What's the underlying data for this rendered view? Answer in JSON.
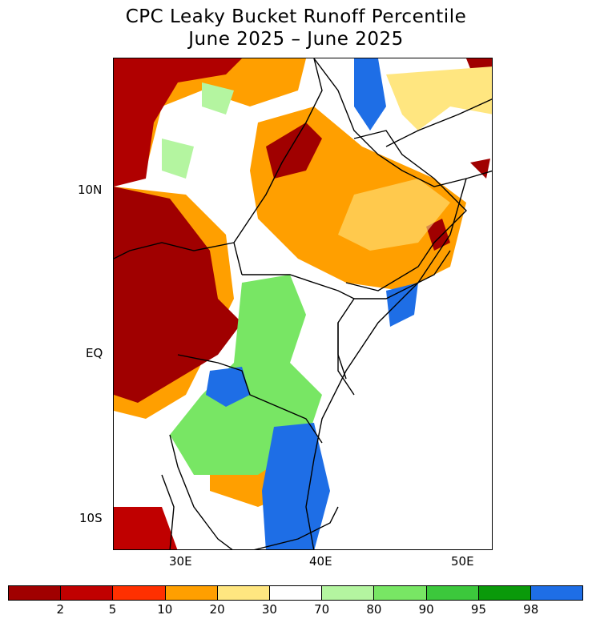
{
  "title": {
    "line1": "CPC Leaky Bucket Runoff Percentile",
    "line2": "June 2025 – June 2025"
  },
  "axes": {
    "lat_labels": [
      "10N",
      "EQ",
      "10S"
    ],
    "lon_labels": [
      "30E",
      "40E",
      "50E"
    ]
  },
  "legend": {
    "colors": [
      "#a00000",
      "#c00000",
      "#ff3000",
      "#ff9f00",
      "#ffe680",
      "#ffffff",
      "#b4f5a0",
      "#78e664",
      "#3cc83c",
      "#0a9a0a",
      "#1e6ee6"
    ],
    "labels": [
      "2",
      "5",
      "10",
      "20",
      "30",
      "70",
      "80",
      "90",
      "95",
      "98"
    ]
  }
}
